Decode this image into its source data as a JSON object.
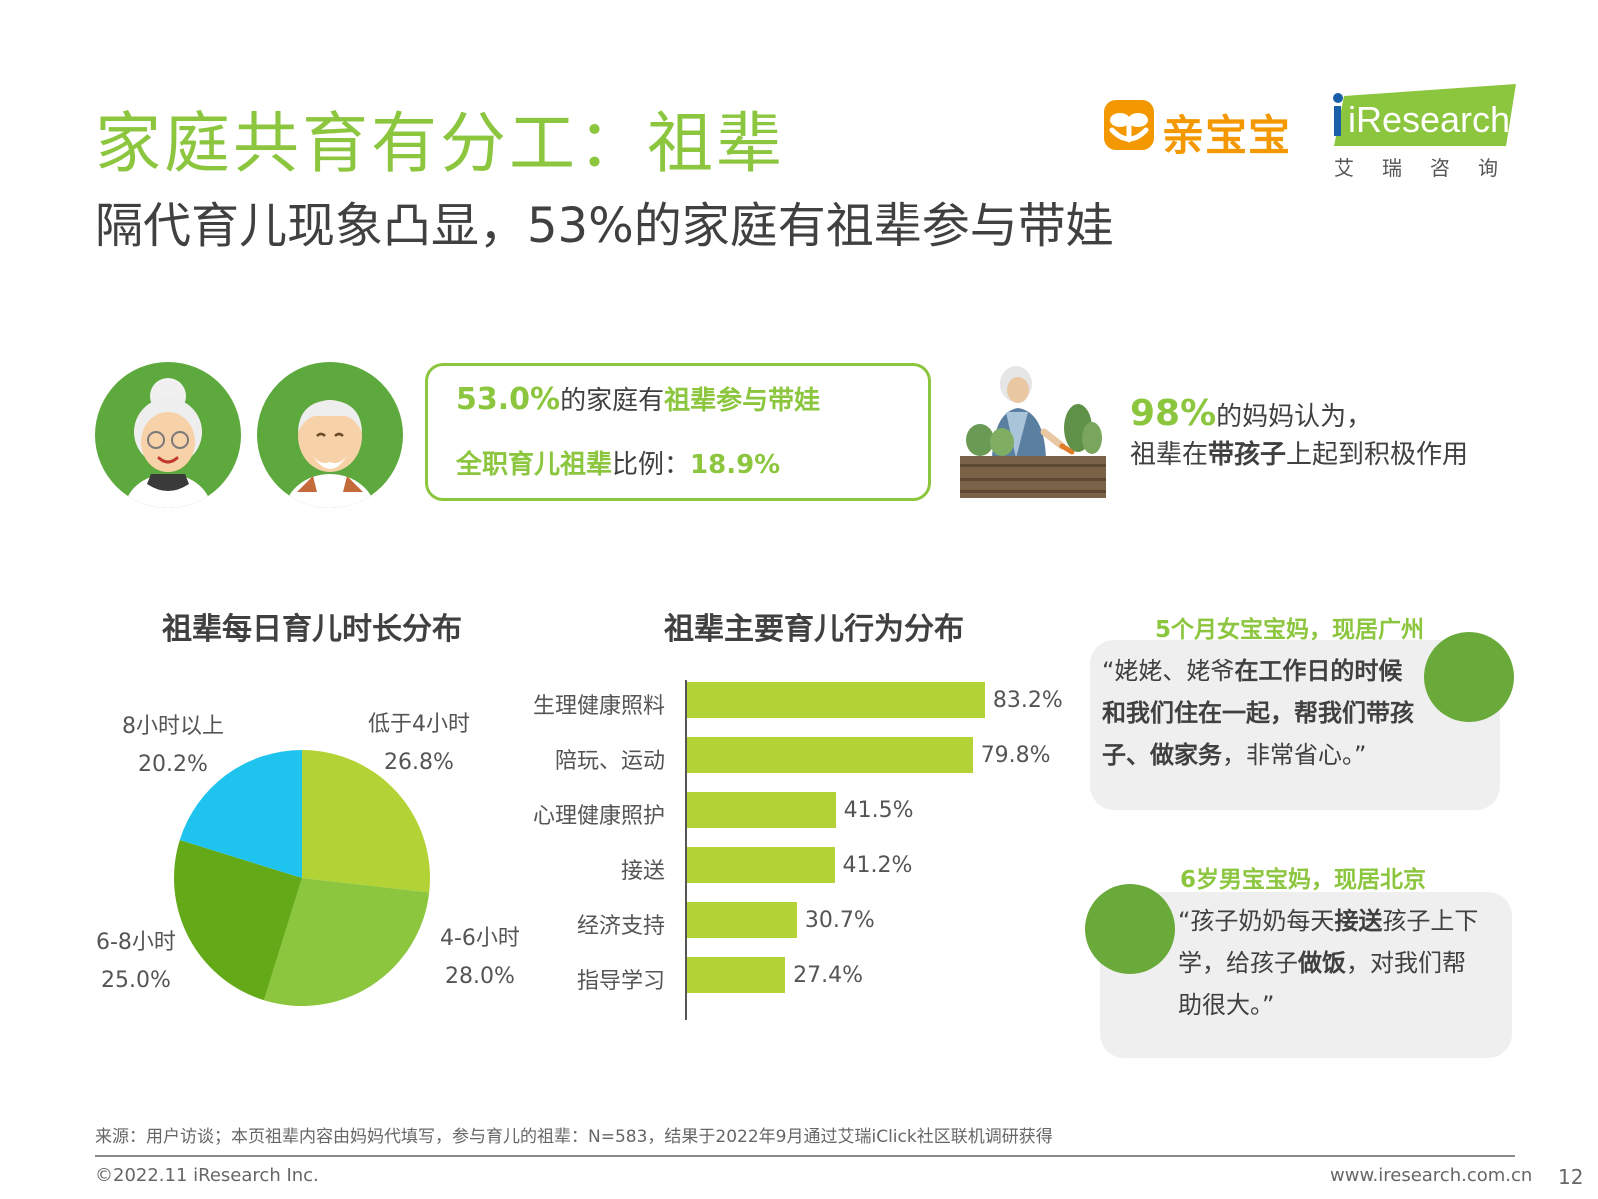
{
  "header": {
    "title": "家庭共育有分工：祖辈",
    "subtitle": "隔代育儿现象凸显，53%的家庭有祖辈参与带娃",
    "brand_qbb": "亲宝宝",
    "brand_ir": "iResearch",
    "brand_ir_sub": "艾瑞咨询"
  },
  "stats": {
    "line1_value": "53.0%",
    "line1_text": "的家庭有",
    "line1_em": "祖辈参与带娃",
    "line2_em": "全职育儿祖辈",
    "line2_text": "比例：",
    "line2_value": "18.9%"
  },
  "opinion": {
    "value": "98%",
    "text1": "的妈妈认为，",
    "text2_a": "祖辈在",
    "text2_em": "带孩子",
    "text2_b": "上起到积极作用"
  },
  "chart_data": [
    {
      "type": "pie",
      "title": "祖辈每日育儿时长分布",
      "slices": [
        {
          "label": "低于4小时",
          "value": 26.8,
          "display": "26.8%",
          "color": "#b2d235"
        },
        {
          "label": "4-6小时",
          "value": 28.0,
          "display": "28.0%",
          "color": "#8cc63f"
        },
        {
          "label": "6-8小时",
          "value": 25.0,
          "display": "25.0%",
          "color": "#63a918"
        },
        {
          "label": "8小时以上",
          "value": 20.2,
          "display": "20.2%",
          "color": "#1fc4ee"
        }
      ]
    },
    {
      "type": "bar",
      "orientation": "horizontal",
      "title": "祖辈主要育儿行为分布",
      "categories": [
        "生理健康照料",
        "陪玩、运动",
        "心理健康照护",
        "接送",
        "经济支持",
        "指导学习"
      ],
      "values": [
        83.2,
        79.8,
        41.5,
        41.2,
        30.7,
        27.4
      ],
      "labels": [
        "83.2%",
        "79.8%",
        "41.5%",
        "41.2%",
        "30.7%",
        "27.4%"
      ],
      "xlim": [
        0,
        100
      ],
      "color": "#b2d235"
    }
  ],
  "quotes": [
    {
      "who": "5个月女宝宝妈，现居广州",
      "p1": "“姥姥、姥爷",
      "e1": "在工作日的时候和我们住在一起，帮我们带孩子、做家务",
      "p2": "，非常省心。”"
    },
    {
      "who": "6岁男宝宝妈，现居北京",
      "p1": "“孩子奶奶每天",
      "e1": "接送",
      "p2": "孩子上下学，给孩子",
      "e2": "做饭",
      "p3": "，对我们帮助很大。”"
    }
  ],
  "footer": {
    "source": "来源：用户访谈；本页祖辈内容由妈妈代填写，参与育儿的祖辈：N=583，结果于2022年9月通过艾瑞iClick社区联机调研获得",
    "copyright": "©2022.11 iResearch Inc.",
    "website": "www.iresearch.com.cn",
    "page": "12"
  },
  "colors": {
    "accent": "#8cc63f",
    "bar": "#b2d235",
    "avatar_bg": "#5ea93d",
    "qbb_orange": "#f39800"
  }
}
